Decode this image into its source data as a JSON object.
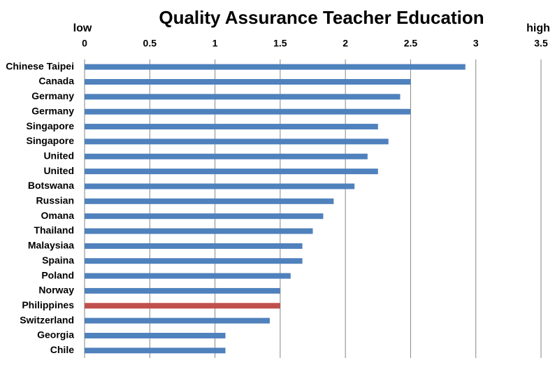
{
  "chart_data": {
    "type": "bar",
    "orientation": "horizontal",
    "title": "Quality Assurance Teacher Education",
    "annotations": [
      "low",
      "high"
    ],
    "categories": [
      "Chinese Taipei",
      "Canada",
      "Germany",
      "Germany",
      "Singapore",
      "Singapore",
      "United",
      "United",
      "Botswana",
      "Russian",
      "Omana",
      "Thailand",
      "Malaysiaa",
      "Spaina",
      "Poland",
      "Norway",
      "Philippines",
      "Switzerland",
      "Georgia",
      "Chile"
    ],
    "values": [
      2.92,
      2.5,
      2.42,
      2.5,
      2.25,
      2.33,
      2.17,
      2.25,
      2.07,
      1.91,
      1.83,
      1.75,
      1.67,
      1.67,
      1.58,
      1.5,
      1.5,
      1.42,
      1.08,
      1.08
    ],
    "colors": [
      "#4f81bd",
      "#4f81bd",
      "#4f81bd",
      "#4f81bd",
      "#4f81bd",
      "#4f81bd",
      "#4f81bd",
      "#4f81bd",
      "#4f81bd",
      "#4f81bd",
      "#4f81bd",
      "#4f81bd",
      "#4f81bd",
      "#4f81bd",
      "#4f81bd",
      "#4f81bd",
      "#c0504d",
      "#4f81bd",
      "#4f81bd",
      "#4f81bd"
    ],
    "xlim": [
      0,
      3.5
    ],
    "xticks": [
      0,
      0.5,
      1,
      1.5,
      2,
      2.5,
      3,
      3.5
    ],
    "grid": true
  }
}
